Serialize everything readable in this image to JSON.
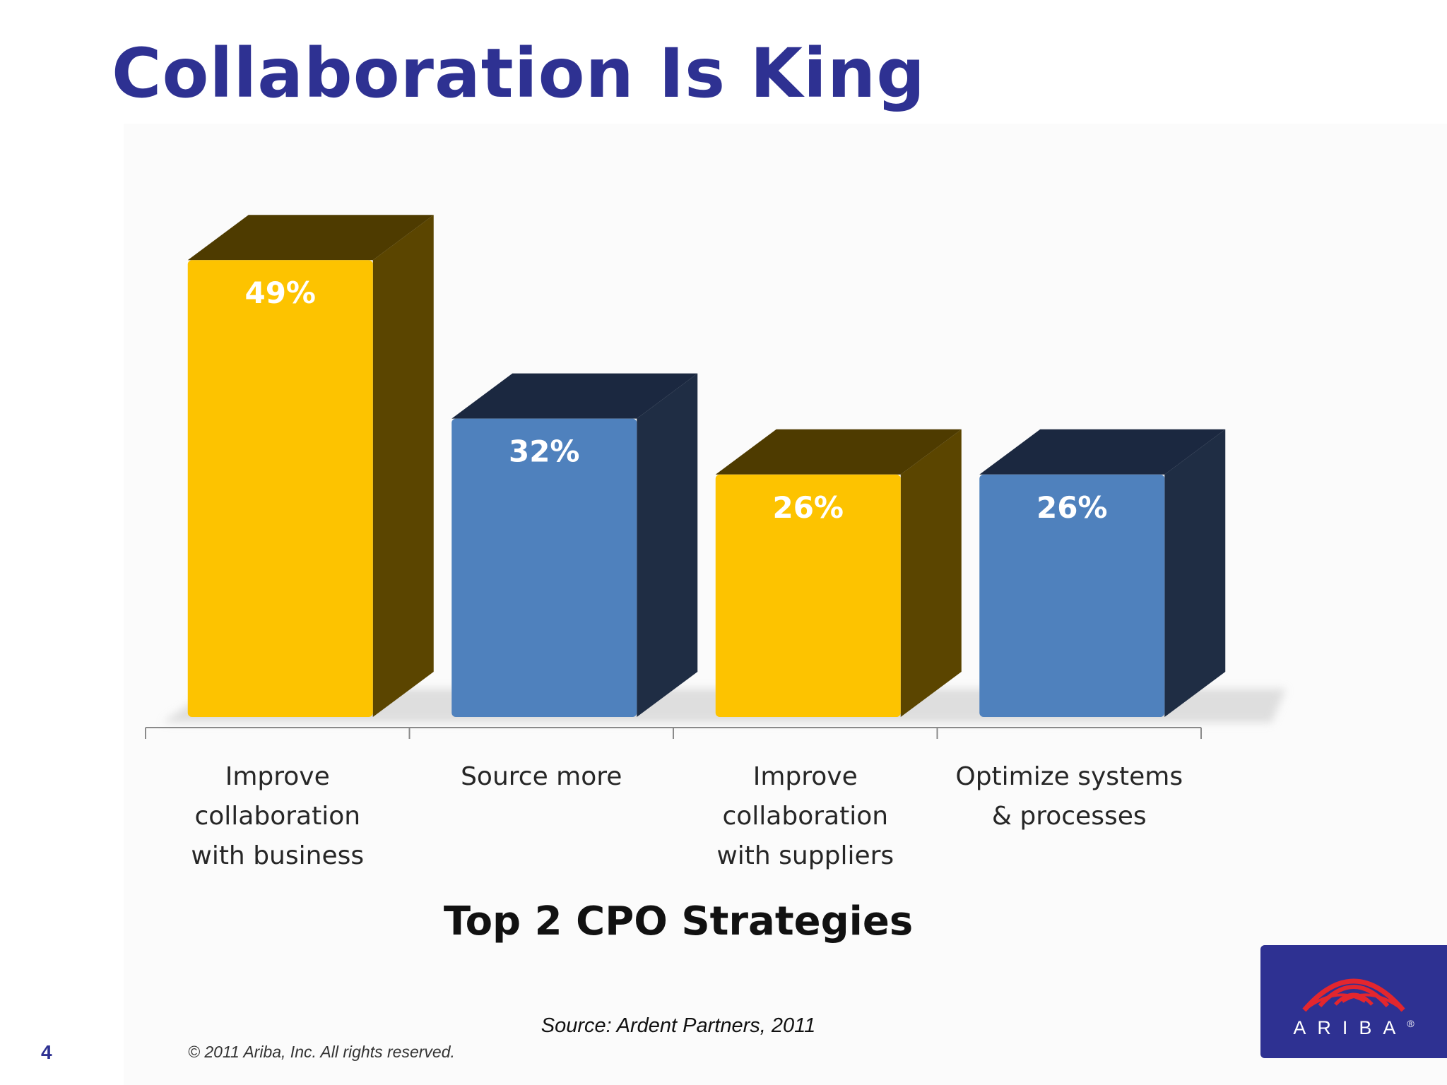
{
  "slide": {
    "title": "Collaboration Is King",
    "page_number": "4",
    "copyright": "© 2011 Ariba, Inc. All rights reserved.",
    "source": "Source: Ardent Partners, 2011",
    "logo": {
      "text": "ARIBA",
      "mark": "®",
      "icon": "ariba-arch-logo"
    }
  },
  "colors": {
    "title": "#2e3192",
    "yellow_front": "#fdc300",
    "yellow_side": "#5b4500",
    "yellow_top": "#4e3b00",
    "blue_front": "#4f81bd",
    "blue_side": "#1f2d44",
    "blue_top": "#1b2840"
  },
  "chart_data": {
    "type": "bar",
    "title": "Top 2 CPO Strategies",
    "categories": [
      "Improve\ncollaboration\nwith business",
      "Source more",
      "Improve\ncollaboration\nwith suppliers",
      "Optimize systems\n& processes"
    ],
    "values": [
      49,
      32,
      26,
      26
    ],
    "data_labels": [
      "49%",
      "32%",
      "26%",
      "26%"
    ],
    "bar_colors": [
      "yellow",
      "blue",
      "yellow",
      "blue"
    ],
    "unit": "%",
    "ylim": [
      0,
      50
    ],
    "grid": false,
    "legend": "none",
    "style": "3d-column"
  }
}
